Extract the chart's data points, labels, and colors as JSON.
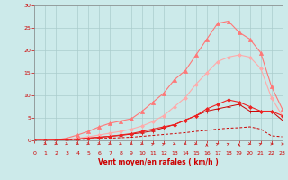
{
  "title": "",
  "xlabel": "Vent moyen/en rafales ( km/h )",
  "xlim": [
    0,
    23
  ],
  "ylim": [
    0,
    30
  ],
  "xticks": [
    0,
    1,
    2,
    3,
    4,
    5,
    6,
    7,
    8,
    9,
    10,
    11,
    12,
    13,
    14,
    15,
    16,
    17,
    18,
    19,
    20,
    21,
    22,
    23
  ],
  "yticks": [
    0,
    5,
    10,
    15,
    20,
    25,
    30
  ],
  "background_color": "#cceaea",
  "grid_color": "#aacccc",
  "lines": [
    {
      "x": [
        0,
        1,
        2,
        3,
        4,
        5,
        6,
        7,
        8,
        9,
        10,
        11,
        12,
        13,
        14,
        15,
        16,
        17,
        18,
        19,
        20,
        21,
        22,
        23
      ],
      "y": [
        0,
        0,
        0,
        0.1,
        0.2,
        0.3,
        0.4,
        0.5,
        0.6,
        0.7,
        0.9,
        1.1,
        1.3,
        1.5,
        1.7,
        2.0,
        2.2,
        2.5,
        2.7,
        2.8,
        3.0,
        2.5,
        1.0,
        0.8
      ],
      "color": "#cc0000",
      "lw": 0.7,
      "marker": null,
      "ms": 0,
      "dashes": [
        3,
        2
      ]
    },
    {
      "x": [
        0,
        1,
        2,
        3,
        4,
        5,
        6,
        7,
        8,
        9,
        10,
        11,
        12,
        13,
        14,
        15,
        16,
        17,
        18,
        19,
        20,
        21,
        22,
        23
      ],
      "y": [
        0,
        0,
        0.1,
        0.2,
        0.3,
        0.5,
        0.7,
        0.9,
        1.1,
        1.4,
        1.7,
        2.1,
        2.8,
        3.5,
        4.5,
        5.5,
        6.5,
        7.0,
        7.5,
        8.0,
        6.5,
        6.5,
        6.5,
        4.5
      ],
      "color": "#cc0000",
      "lw": 0.7,
      "marker": "+",
      "ms": 3,
      "dashes": null
    },
    {
      "x": [
        0,
        1,
        2,
        3,
        4,
        5,
        6,
        7,
        8,
        9,
        10,
        11,
        12,
        13,
        14,
        15,
        16,
        17,
        18,
        19,
        20,
        21,
        22,
        23
      ],
      "y": [
        0,
        0,
        0.05,
        0.2,
        0.5,
        0.8,
        1.2,
        1.6,
        2.0,
        2.5,
        3.2,
        4.2,
        5.5,
        7.5,
        9.5,
        12.5,
        15.0,
        17.5,
        18.5,
        19.0,
        18.5,
        16.0,
        9.5,
        5.5
      ],
      "color": "#ffaaaa",
      "lw": 0.8,
      "marker": "D",
      "ms": 2,
      "dashes": null
    },
    {
      "x": [
        0,
        1,
        2,
        3,
        4,
        5,
        6,
        7,
        8,
        9,
        10,
        11,
        12,
        13,
        14,
        15,
        16,
        17,
        18,
        19,
        20,
        21,
        22,
        23
      ],
      "y": [
        0,
        0,
        0.1,
        0.5,
        1.2,
        2.0,
        3.0,
        3.8,
        4.3,
        4.8,
        6.5,
        8.5,
        10.5,
        13.5,
        15.5,
        19.0,
        22.5,
        26.0,
        26.5,
        24.0,
        22.5,
        19.5,
        12.0,
        7.0
      ],
      "color": "#ff7777",
      "lw": 0.8,
      "marker": "^",
      "ms": 3,
      "dashes": null
    },
    {
      "x": [
        0,
        1,
        2,
        3,
        4,
        5,
        6,
        7,
        8,
        9,
        10,
        11,
        12,
        13,
        14,
        15,
        16,
        17,
        18,
        19,
        20,
        21,
        22,
        23
      ],
      "y": [
        0,
        0,
        0.05,
        0.15,
        0.3,
        0.5,
        0.7,
        0.9,
        1.2,
        1.5,
        2.0,
        2.5,
        3.0,
        3.5,
        4.5,
        5.5,
        7.0,
        8.0,
        9.0,
        8.5,
        7.5,
        6.5,
        6.5,
        5.5
      ],
      "color": "#ee2222",
      "lw": 0.8,
      "marker": "D",
      "ms": 2,
      "dashes": null
    }
  ],
  "wind_arrow_angles": [
    45,
    45,
    45,
    45,
    45,
    45,
    45,
    45,
    45,
    45,
    135,
    135,
    45,
    45,
    45,
    180,
    135,
    135,
    180,
    45,
    135,
    90,
    90
  ]
}
